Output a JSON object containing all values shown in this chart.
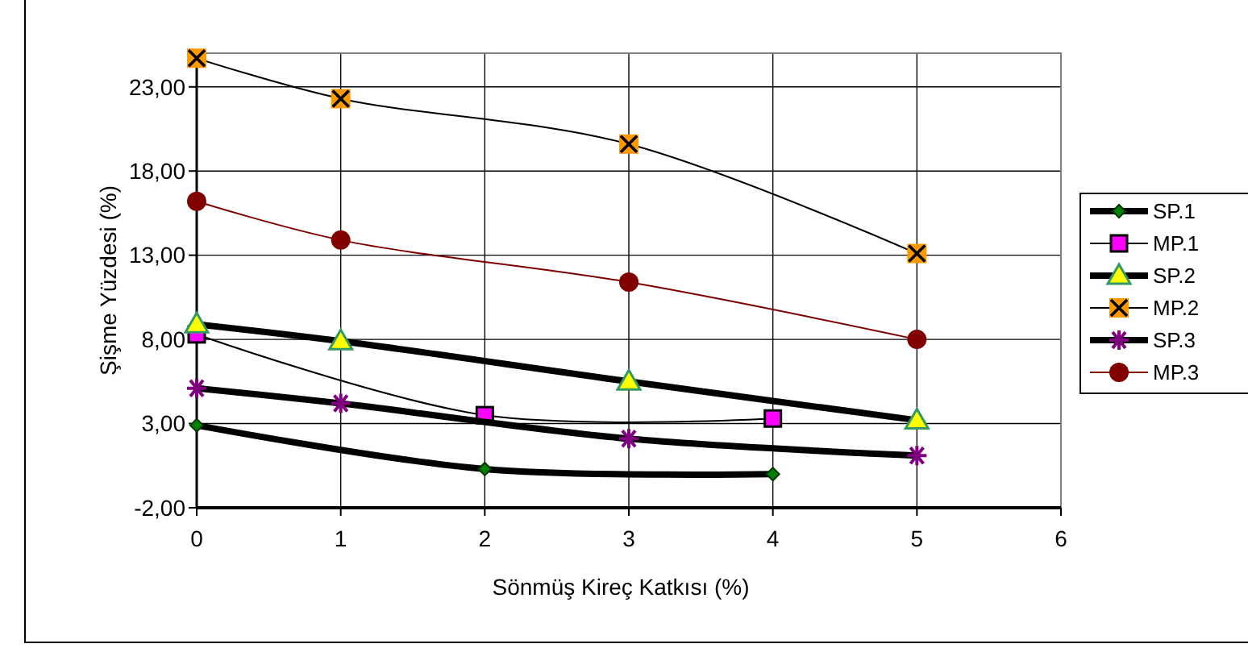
{
  "chart_data": {
    "type": "line",
    "xlabel": "Sönmüş Kireç Katkısı (%)",
    "ylabel": "Şişme Yüzdesi (%)",
    "xlim": [
      0,
      6
    ],
    "xticks": [
      0,
      1,
      2,
      3,
      4,
      5,
      6
    ],
    "ylim": [
      -2,
      25
    ],
    "yticks": [
      {
        "value": -2,
        "label": "-2,00"
      },
      {
        "value": 3,
        "label": "3,00"
      },
      {
        "value": 8,
        "label": "8,00"
      },
      {
        "value": 13,
        "label": "13,00"
      },
      {
        "value": 18,
        "label": "18,00"
      },
      {
        "value": 23,
        "label": "23,00"
      }
    ],
    "grid": true,
    "legend": "right",
    "series": [
      {
        "name": "SP.1",
        "color": "#008000",
        "marker": "diamond",
        "x": [
          0,
          2,
          4
        ],
        "values": [
          2.9,
          0.3,
          0.0
        ]
      },
      {
        "name": "MP.1",
        "color": "#ff00ff",
        "marker": "square",
        "x": [
          0,
          2,
          4
        ],
        "values": [
          8.3,
          3.5,
          3.3
        ]
      },
      {
        "name": "SP.2",
        "color": "#ffff00",
        "marker": "triangle",
        "x": [
          0,
          1,
          3,
          5
        ],
        "values": [
          8.9,
          7.9,
          5.5,
          3.2
        ]
      },
      {
        "name": "MP.2",
        "color": "#ff9900",
        "marker": "square",
        "x": [
          0,
          1,
          3,
          5
        ],
        "values": [
          24.7,
          22.3,
          19.6,
          13.1
        ]
      },
      {
        "name": "SP.3",
        "color": "#800080",
        "marker": "cross",
        "x": [
          0,
          1,
          3,
          5
        ],
        "values": [
          5.1,
          4.2,
          2.1,
          1.1
        ]
      },
      {
        "name": "MP.3",
        "color": "#800000",
        "marker": "circle",
        "x": [
          0,
          1,
          3,
          5
        ],
        "values": [
          16.2,
          13.9,
          11.4,
          8.0
        ]
      }
    ]
  }
}
